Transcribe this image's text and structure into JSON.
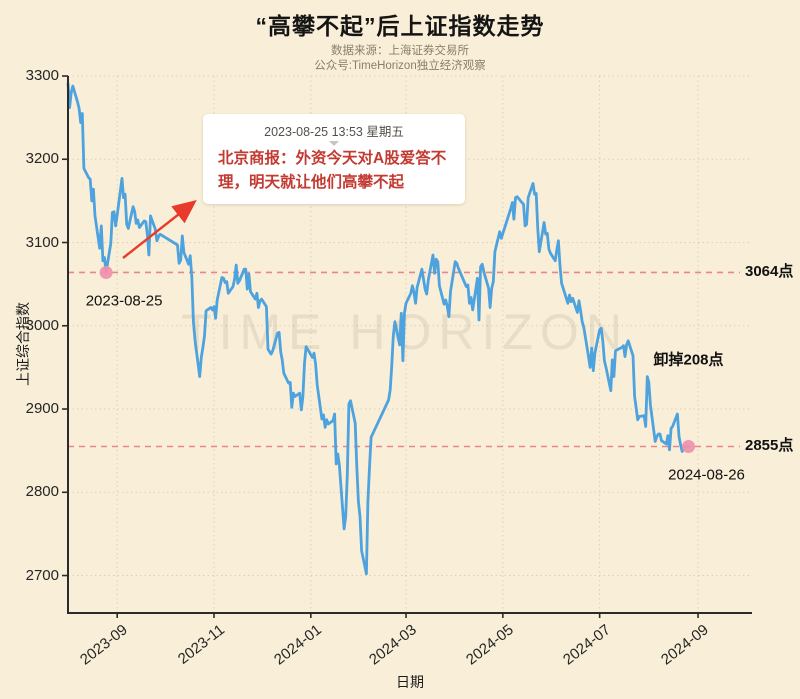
{
  "page": {
    "title": "“高攀不起”后上证指数走势",
    "source_line": "数据来源：上海证券交易所",
    "account_line": "公众号:TimeHorizon独立经济观察",
    "watermark": "TIME HORIZON"
  },
  "annotation_card": {
    "timestamp": "2023-08-25 13:53 星期五",
    "body": "北京商报：外资今天对A股爱答不理，明天就让他们高攀不起"
  },
  "colors": {
    "background": "#F9EFD8",
    "line": "#4EA2DE",
    "reference_line": "#E8868E",
    "marker_dot": "#EE92AE",
    "arrow": "#E83B2C",
    "quote_text": "#C23A31",
    "axis": "#2b2b2b",
    "grid": "rgba(150,130,90,0.28)"
  },
  "chart_data": {
    "type": "line",
    "title": "“高攀不起”后上证指数走势",
    "xlabel": "日期",
    "ylabel": "上证综合指数",
    "x_domain": [
      "2023-08-01",
      "2024-10-05"
    ],
    "ylim": [
      2655,
      3300
    ],
    "y_ticks": [
      3300,
      3200,
      3100,
      3000,
      2900,
      2800,
      2700
    ],
    "x_ticks": [
      {
        "label": "2023-09",
        "date": "2023-09-01"
      },
      {
        "label": "2023-11",
        "date": "2023-11-01"
      },
      {
        "label": "2024-01",
        "date": "2024-01-01"
      },
      {
        "label": "2024-03",
        "date": "2024-03-01"
      },
      {
        "label": "2024-05",
        "date": "2024-05-01"
      },
      {
        "label": "2024-07",
        "date": "2024-07-01"
      },
      {
        "label": "2024-09",
        "date": "2024-09-01"
      }
    ],
    "grid": true,
    "legend": "none",
    "reference_lines": [
      {
        "value": 3064,
        "label": "3064点"
      },
      {
        "value": 2855,
        "label": "2855点"
      }
    ],
    "markers": [
      {
        "date": "2023-08-25",
        "value": 3064,
        "label": "2023-08-25"
      },
      {
        "date": "2024-08-26",
        "value": 2855,
        "label": "2024-08-26"
      }
    ],
    "annotations": [
      {
        "text": "卸掉208点",
        "date": "2024-08-26",
        "value": 2960
      }
    ],
    "series": [
      {
        "name": "上证综合指数",
        "points": [
          [
            "2023-08-01",
            3291
          ],
          [
            "2023-08-02",
            3262
          ],
          [
            "2023-08-03",
            3280
          ],
          [
            "2023-08-04",
            3288
          ],
          [
            "2023-08-07",
            3269
          ],
          [
            "2023-08-08",
            3261
          ],
          [
            "2023-08-09",
            3244
          ],
          [
            "2023-08-10",
            3255
          ],
          [
            "2023-08-11",
            3189
          ],
          [
            "2023-08-14",
            3178
          ],
          [
            "2023-08-15",
            3176
          ],
          [
            "2023-08-16",
            3150
          ],
          [
            "2023-08-17",
            3164
          ],
          [
            "2023-08-18",
            3132
          ],
          [
            "2023-08-21",
            3093
          ],
          [
            "2023-08-22",
            3120
          ],
          [
            "2023-08-23",
            3078
          ],
          [
            "2023-08-24",
            3082
          ],
          [
            "2023-08-25",
            3064
          ],
          [
            "2023-08-28",
            3099
          ],
          [
            "2023-08-29",
            3136
          ],
          [
            "2023-08-30",
            3137
          ],
          [
            "2023-08-31",
            3120
          ],
          [
            "2023-09-01",
            3133
          ],
          [
            "2023-09-04",
            3177
          ],
          [
            "2023-09-05",
            3154
          ],
          [
            "2023-09-06",
            3158
          ],
          [
            "2023-09-07",
            3122
          ],
          [
            "2023-09-08",
            3117
          ],
          [
            "2023-09-11",
            3143
          ],
          [
            "2023-09-12",
            3137
          ],
          [
            "2023-09-13",
            3123
          ],
          [
            "2023-09-14",
            3127
          ],
          [
            "2023-09-15",
            3118
          ],
          [
            "2023-09-18",
            3126
          ],
          [
            "2023-09-19",
            3125
          ],
          [
            "2023-09-20",
            3109
          ],
          [
            "2023-09-21",
            3085
          ],
          [
            "2023-09-22",
            3132
          ],
          [
            "2023-09-25",
            3116
          ],
          [
            "2023-09-26",
            3102
          ],
          [
            "2023-09-27",
            3107
          ],
          [
            "2023-09-28",
            3110
          ],
          [
            "2023-10-09",
            3097
          ],
          [
            "2023-10-10",
            3075
          ],
          [
            "2023-10-11",
            3079
          ],
          [
            "2023-10-12",
            3108
          ],
          [
            "2023-10-13",
            3088
          ],
          [
            "2023-10-16",
            3074
          ],
          [
            "2023-10-17",
            3084
          ],
          [
            "2023-10-18",
            3059
          ],
          [
            "2023-10-19",
            3005
          ],
          [
            "2023-10-20",
            2983
          ],
          [
            "2023-10-23",
            2939
          ],
          [
            "2023-10-24",
            2962
          ],
          [
            "2023-10-25",
            2974
          ],
          [
            "2023-10-26",
            2988
          ],
          [
            "2023-10-27",
            3018
          ],
          [
            "2023-10-30",
            3022
          ],
          [
            "2023-10-31",
            3019
          ],
          [
            "2023-11-01",
            3023
          ],
          [
            "2023-11-02",
            3009
          ],
          [
            "2023-11-03",
            3031
          ],
          [
            "2023-11-06",
            3058
          ],
          [
            "2023-11-07",
            3057
          ],
          [
            "2023-11-08",
            3052
          ],
          [
            "2023-11-09",
            3053
          ],
          [
            "2023-11-10",
            3039
          ],
          [
            "2023-11-13",
            3047
          ],
          [
            "2023-11-14",
            3056
          ],
          [
            "2023-11-15",
            3073
          ],
          [
            "2023-11-16",
            3051
          ],
          [
            "2023-11-17",
            3054
          ],
          [
            "2023-11-20",
            3068
          ],
          [
            "2023-11-21",
            3068
          ],
          [
            "2023-11-22",
            3044
          ],
          [
            "2023-11-23",
            3062
          ],
          [
            "2023-11-24",
            3041
          ],
          [
            "2023-11-27",
            3032
          ],
          [
            "2023-11-28",
            3039
          ],
          [
            "2023-11-29",
            3022
          ],
          [
            "2023-11-30",
            3030
          ],
          [
            "2023-12-01",
            3032
          ],
          [
            "2023-12-04",
            3023
          ],
          [
            "2023-12-05",
            2972
          ],
          [
            "2023-12-06",
            2969
          ],
          [
            "2023-12-07",
            2966
          ],
          [
            "2023-12-08",
            2970
          ],
          [
            "2023-12-11",
            2991
          ],
          [
            "2023-12-12",
            2992
          ],
          [
            "2023-12-13",
            2969
          ],
          [
            "2023-12-14",
            2959
          ],
          [
            "2023-12-15",
            2943
          ],
          [
            "2023-12-18",
            2931
          ],
          [
            "2023-12-19",
            2932
          ],
          [
            "2023-12-20",
            2902
          ],
          [
            "2023-12-21",
            2919
          ],
          [
            "2023-12-22",
            2915
          ],
          [
            "2023-12-25",
            2919
          ],
          [
            "2023-12-26",
            2899
          ],
          [
            "2023-12-27",
            2915
          ],
          [
            "2023-12-28",
            2955
          ],
          [
            "2023-12-29",
            2975
          ],
          [
            "2024-01-02",
            2962
          ],
          [
            "2024-01-03",
            2967
          ],
          [
            "2024-01-04",
            2954
          ],
          [
            "2024-01-05",
            2929
          ],
          [
            "2024-01-08",
            2888
          ],
          [
            "2024-01-09",
            2893
          ],
          [
            "2024-01-10",
            2878
          ],
          [
            "2024-01-11",
            2887
          ],
          [
            "2024-01-12",
            2882
          ],
          [
            "2024-01-15",
            2886
          ],
          [
            "2024-01-16",
            2894
          ],
          [
            "2024-01-17",
            2834
          ],
          [
            "2024-01-18",
            2846
          ],
          [
            "2024-01-19",
            2832
          ],
          [
            "2024-01-22",
            2756
          ],
          [
            "2024-01-23",
            2771
          ],
          [
            "2024-01-24",
            2821
          ],
          [
            "2024-01-25",
            2906
          ],
          [
            "2024-01-26",
            2910
          ],
          [
            "2024-01-29",
            2883
          ],
          [
            "2024-01-30",
            2831
          ],
          [
            "2024-01-31",
            2789
          ],
          [
            "2024-02-01",
            2771
          ],
          [
            "2024-02-02",
            2730
          ],
          [
            "2024-02-05",
            2702
          ],
          [
            "2024-02-06",
            2789
          ],
          [
            "2024-02-07",
            2830
          ],
          [
            "2024-02-08",
            2866
          ],
          [
            "2024-02-19",
            2911
          ],
          [
            "2024-02-20",
            2923
          ],
          [
            "2024-02-21",
            2951
          ],
          [
            "2024-02-22",
            2988
          ],
          [
            "2024-02-23",
            3005
          ],
          [
            "2024-02-26",
            2977
          ],
          [
            "2024-02-27",
            3015
          ],
          [
            "2024-02-28",
            2958
          ],
          [
            "2024-02-29",
            3015
          ],
          [
            "2024-03-01",
            3027
          ],
          [
            "2024-03-04",
            3039
          ],
          [
            "2024-03-05",
            3048
          ],
          [
            "2024-03-06",
            3040
          ],
          [
            "2024-03-07",
            3027
          ],
          [
            "2024-03-08",
            3046
          ],
          [
            "2024-03-11",
            3068
          ],
          [
            "2024-03-12",
            3056
          ],
          [
            "2024-03-13",
            3044
          ],
          [
            "2024-03-14",
            3038
          ],
          [
            "2024-03-15",
            3055
          ],
          [
            "2024-03-18",
            3085
          ],
          [
            "2024-03-19",
            3063
          ],
          [
            "2024-03-20",
            3080
          ],
          [
            "2024-03-21",
            3077
          ],
          [
            "2024-03-22",
            3048
          ],
          [
            "2024-03-25",
            3026
          ],
          [
            "2024-03-26",
            3031
          ],
          [
            "2024-03-27",
            3023
          ],
          [
            "2024-03-28",
            3011
          ],
          [
            "2024-03-29",
            3041
          ],
          [
            "2024-04-01",
            3077
          ],
          [
            "2024-04-02",
            3075
          ],
          [
            "2024-04-03",
            3069
          ],
          [
            "2024-04-08",
            3047
          ],
          [
            "2024-04-09",
            3049
          ],
          [
            "2024-04-10",
            3027
          ],
          [
            "2024-04-11",
            3034
          ],
          [
            "2024-04-12",
            3019
          ],
          [
            "2024-04-15",
            3057
          ],
          [
            "2024-04-16",
            3007
          ],
          [
            "2024-04-17",
            3071
          ],
          [
            "2024-04-18",
            3074
          ],
          [
            "2024-04-19",
            3065
          ],
          [
            "2024-04-22",
            3045
          ],
          [
            "2024-04-23",
            3022
          ],
          [
            "2024-04-24",
            3045
          ],
          [
            "2024-04-25",
            3053
          ],
          [
            "2024-04-26",
            3089
          ],
          [
            "2024-04-29",
            3113
          ],
          [
            "2024-04-30",
            3105
          ],
          [
            "2024-05-06",
            3141
          ],
          [
            "2024-05-07",
            3148
          ],
          [
            "2024-05-08",
            3128
          ],
          [
            "2024-05-09",
            3154
          ],
          [
            "2024-05-10",
            3155
          ],
          [
            "2024-05-13",
            3148
          ],
          [
            "2024-05-14",
            3146
          ],
          [
            "2024-05-15",
            3120
          ],
          [
            "2024-05-16",
            3122
          ],
          [
            "2024-05-17",
            3154
          ],
          [
            "2024-05-20",
            3171
          ],
          [
            "2024-05-21",
            3158
          ],
          [
            "2024-05-22",
            3159
          ],
          [
            "2024-05-23",
            3116
          ],
          [
            "2024-05-24",
            3089
          ],
          [
            "2024-05-27",
            3124
          ],
          [
            "2024-05-28",
            3110
          ],
          [
            "2024-05-29",
            3111
          ],
          [
            "2024-05-30",
            3092
          ],
          [
            "2024-05-31",
            3087
          ],
          [
            "2024-06-03",
            3078
          ],
          [
            "2024-06-04",
            3091
          ],
          [
            "2024-06-05",
            3102
          ],
          [
            "2024-06-06",
            3072
          ],
          [
            "2024-06-07",
            3051
          ],
          [
            "2024-06-11",
            3027
          ],
          [
            "2024-06-12",
            3037
          ],
          [
            "2024-06-13",
            3029
          ],
          [
            "2024-06-14",
            3033
          ],
          [
            "2024-06-17",
            3016
          ],
          [
            "2024-06-18",
            3030
          ],
          [
            "2024-06-19",
            3018
          ],
          [
            "2024-06-20",
            3005
          ],
          [
            "2024-06-21",
            2998
          ],
          [
            "2024-06-24",
            2963
          ],
          [
            "2024-06-25",
            2950
          ],
          [
            "2024-06-26",
            2973
          ],
          [
            "2024-06-27",
            2946
          ],
          [
            "2024-06-28",
            2967
          ],
          [
            "2024-07-01",
            2995
          ],
          [
            "2024-07-02",
            2997
          ],
          [
            "2024-07-03",
            2982
          ],
          [
            "2024-07-04",
            2958
          ],
          [
            "2024-07-05",
            2950
          ],
          [
            "2024-07-08",
            2922
          ],
          [
            "2024-07-09",
            2959
          ],
          [
            "2024-07-10",
            2939
          ],
          [
            "2024-07-11",
            2970
          ],
          [
            "2024-07-12",
            2971
          ],
          [
            "2024-07-15",
            2974
          ],
          [
            "2024-07-16",
            2976
          ],
          [
            "2024-07-17",
            2963
          ],
          [
            "2024-07-18",
            2977
          ],
          [
            "2024-07-19",
            2982
          ],
          [
            "2024-07-22",
            2964
          ],
          [
            "2024-07-23",
            2915
          ],
          [
            "2024-07-24",
            2902
          ],
          [
            "2024-07-25",
            2887
          ],
          [
            "2024-07-26",
            2891
          ],
          [
            "2024-07-29",
            2892
          ],
          [
            "2024-07-30",
            2879
          ],
          [
            "2024-07-31",
            2939
          ],
          [
            "2024-08-01",
            2932
          ],
          [
            "2024-08-02",
            2905
          ],
          [
            "2024-08-05",
            2861
          ],
          [
            "2024-08-06",
            2867
          ],
          [
            "2024-08-07",
            2870
          ],
          [
            "2024-08-08",
            2870
          ],
          [
            "2024-08-09",
            2862
          ],
          [
            "2024-08-12",
            2858
          ],
          [
            "2024-08-13",
            2868
          ],
          [
            "2024-08-14",
            2851
          ],
          [
            "2024-08-15",
            2877
          ],
          [
            "2024-08-16",
            2879
          ],
          [
            "2024-08-19",
            2894
          ],
          [
            "2024-08-20",
            2867
          ],
          [
            "2024-08-21",
            2857
          ],
          [
            "2024-08-22",
            2849
          ],
          [
            "2024-08-23",
            2854
          ],
          [
            "2024-08-26",
            2855
          ]
        ]
      }
    ]
  }
}
